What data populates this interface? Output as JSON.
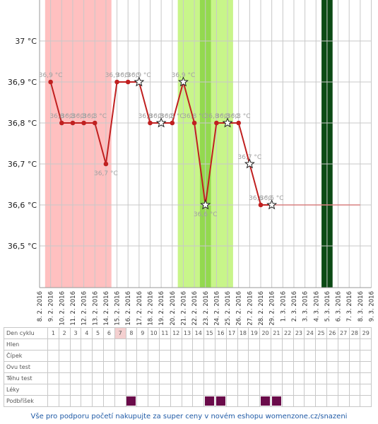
{
  "chart_data": {
    "type": "line",
    "ylim": [
      36.4,
      37.1
    ],
    "y_ticks": [
      "36,5 °C",
      "36,6 °C",
      "36,7 °C",
      "36,8 °C",
      "36,9 °C",
      "37 °C"
    ],
    "y_tick_values": [
      36.5,
      36.6,
      36.7,
      36.8,
      36.9,
      37.0
    ],
    "x_dates": [
      "8. 2. 2016",
      "9. 2. 2016",
      "10. 2. 2016",
      "11. 2. 2016",
      "12. 2. 2016",
      "13. 2. 2016",
      "14. 2. 2016",
      "15. 2. 2016",
      "16. 2. 2016",
      "17. 2. 2016",
      "18. 2. 2016",
      "19. 2. 2016",
      "20. 2. 2016",
      "21. 2. 2016",
      "22. 2. 2016",
      "23. 2. 2016",
      "24. 2. 2016",
      "25. 2. 2016",
      "26. 2. 2016",
      "27. 2. 2016",
      "28. 2. 2016",
      "29. 2. 2016",
      "1. 3. 2016",
      "2. 3. 2016",
      "3. 3. 2016",
      "4. 3. 2016",
      "5. 3. 2016",
      "6. 3. 2016",
      "7. 3. 2016",
      "8. 3. 2016",
      "9. 3. 2016"
    ],
    "series": [
      {
        "values": [
          {
            "date": "9. 2. 2016",
            "y": 36.9,
            "label": "36,9 °C",
            "star": false
          },
          {
            "date": "10. 2. 2016",
            "y": 36.8,
            "label": "36,8 °C",
            "star": false
          },
          {
            "date": "11. 2. 2016",
            "y": 36.8,
            "label": "36,8 °C",
            "star": false
          },
          {
            "date": "12. 2. 2016",
            "y": 36.8,
            "label": "36,8 °C",
            "star": false
          },
          {
            "date": "13. 2. 2016",
            "y": 36.8,
            "label": "36,8 °C",
            "star": false
          },
          {
            "date": "14. 2. 2016",
            "y": 36.7,
            "label": "36,7 °C",
            "star": false
          },
          {
            "date": "15. 2. 2016",
            "y": 36.9,
            "label": "36,9 °C",
            "star": false
          },
          {
            "date": "16. 2. 2016",
            "y": 36.9,
            "label": "36,9 °C",
            "star": false
          },
          {
            "date": "17. 2. 2016",
            "y": 36.9,
            "label": "36,9 °C",
            "star": true
          },
          {
            "date": "18. 2. 2016",
            "y": 36.8,
            "label": "36,8 °C",
            "star": false
          },
          {
            "date": "19. 2. 2016",
            "y": 36.8,
            "label": "36,8 °C",
            "star": true
          },
          {
            "date": "20. 2. 2016",
            "y": 36.8,
            "label": "36,8 °C",
            "star": false
          },
          {
            "date": "21. 2. 2016",
            "y": 36.9,
            "label": "36,9 °C",
            "star": true
          },
          {
            "date": "22. 2. 2016",
            "y": 36.8,
            "label": "36,8 °C",
            "star": false
          },
          {
            "date": "23. 2. 2016",
            "y": 36.6,
            "label": "36,6 °C",
            "star": true
          },
          {
            "date": "24. 2. 2016",
            "y": 36.8,
            "label": "36,8 °C",
            "star": false
          },
          {
            "date": "25. 2. 2016",
            "y": 36.8,
            "label": "36,8 °C",
            "star": true
          },
          {
            "date": "26. 2. 2016",
            "y": 36.8,
            "label": "36,8 °C",
            "star": false
          },
          {
            "date": "27. 2. 2016",
            "y": 36.7,
            "label": "36,7 °C",
            "star": true
          },
          {
            "date": "28. 2. 2016",
            "y": 36.6,
            "label": "36,6 °C",
            "star": false
          },
          {
            "date": "29. 2. 2016",
            "y": 36.6,
            "label": "36,6 °C",
            "star": true
          }
        ]
      }
    ],
    "coverline": {
      "y": 36.6,
      "from": "29. 2. 2016",
      "to": "8. 3. 2016"
    },
    "bands": [
      {
        "from": "8. 2. 2016",
        "to": "14. 2. 2016",
        "color": "#ffc0c0"
      },
      {
        "from": "20. 2. 2016",
        "to": "25. 2. 2016",
        "color": "#c8f58a"
      },
      {
        "from": "22. 2. 2016",
        "to": "23. 2. 2016",
        "color": "#93d94f"
      },
      {
        "from": "4. 3. 2016",
        "to": "5. 3. 2016",
        "color": "#0b4a14"
      }
    ],
    "grid": true,
    "line_color": "#c02020",
    "label_color": "#a0a0a0"
  },
  "table": {
    "rows": [
      "Den cyklu",
      "Hlen",
      "Čípek",
      "Ovu test",
      "Těhu test",
      "Léky",
      "Podbříšek"
    ],
    "days": [
      "1",
      "2",
      "3",
      "4",
      "5",
      "6",
      "7",
      "8",
      "9",
      "10",
      "11",
      "12",
      "13",
      "14",
      "15",
      "16",
      "17",
      "18",
      "19",
      "20",
      "21",
      "22",
      "23",
      "24",
      "25",
      "26",
      "27",
      "28",
      "29"
    ],
    "highlight_day": "7",
    "podbrisek_marked_days": [
      "8",
      "15",
      "16",
      "20",
      "21"
    ],
    "mark_color": "#6a0b4a"
  },
  "footer": "Vše pro podporu početí nakupujte za super ceny v novém eshopu womenzone.cz/snazeni"
}
